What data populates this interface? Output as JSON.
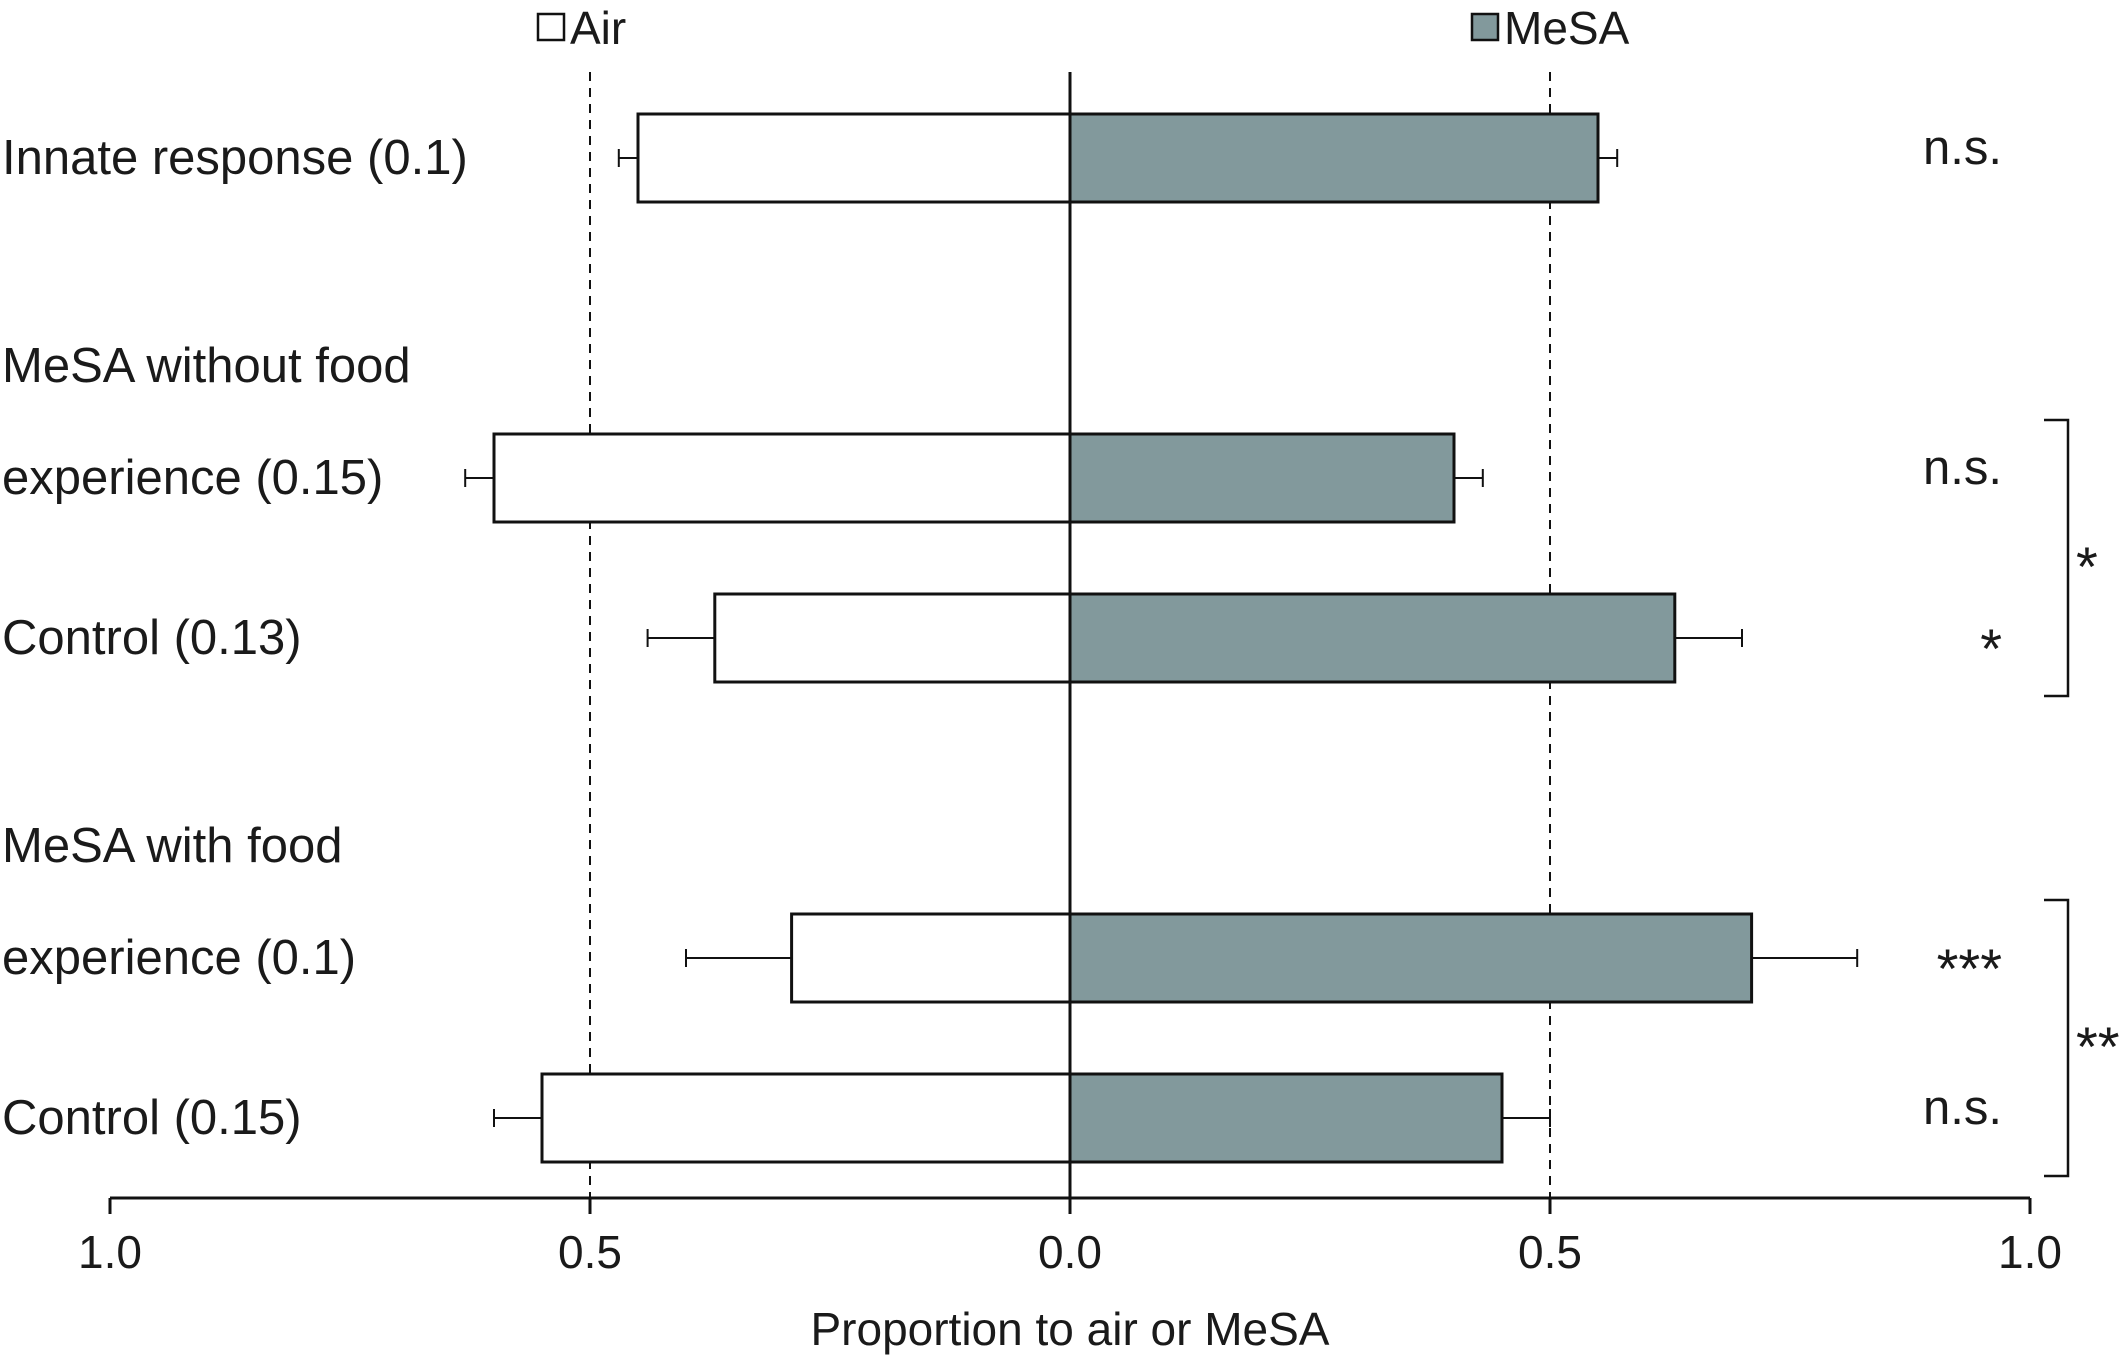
{
  "chart_data": {
    "type": "bar",
    "orientation": "horizontal-diverging",
    "legend": [
      {
        "label": "Air",
        "color": "#ffffff"
      },
      {
        "label": "MeSA",
        "color": "#82999c"
      }
    ],
    "xlabel": "Proportion to air or MeSA",
    "ticks": [
      "1.0",
      "0.5",
      "0.0",
      "0.5",
      "1.0"
    ],
    "xlim": [
      -1.0,
      1.0
    ],
    "reference_lines": [
      -0.5,
      0.5
    ],
    "rows": [
      {
        "label_lines": [
          "Innate response (0.1)"
        ],
        "air": 0.45,
        "air_err": 0.02,
        "mesa": 0.55,
        "mesa_err": 0.02,
        "sig": "n.s."
      },
      {
        "label_lines": [
          "MeSA without food",
          "experience (0.15)"
        ],
        "air": 0.6,
        "air_err": 0.03,
        "mesa": 0.4,
        "mesa_err": 0.03,
        "sig": "n.s."
      },
      {
        "label_lines": [
          "Control (0.13)"
        ],
        "air": 0.37,
        "air_err": 0.07,
        "mesa": 0.63,
        "mesa_err": 0.07,
        "sig": "*"
      },
      {
        "label_lines": [
          "MeSA with food",
          "experience (0.1)"
        ],
        "air": 0.29,
        "air_err": 0.11,
        "mesa": 0.71,
        "mesa_err": 0.11,
        "sig": "***"
      },
      {
        "label_lines": [
          "Control (0.15)"
        ],
        "air": 0.55,
        "air_err": 0.05,
        "mesa": 0.45,
        "mesa_err": 0.05,
        "sig": "n.s."
      }
    ],
    "brackets": [
      {
        "from_row": 1,
        "to_row": 2,
        "sig": "*"
      },
      {
        "from_row": 3,
        "to_row": 4,
        "sig": "**"
      }
    ]
  }
}
